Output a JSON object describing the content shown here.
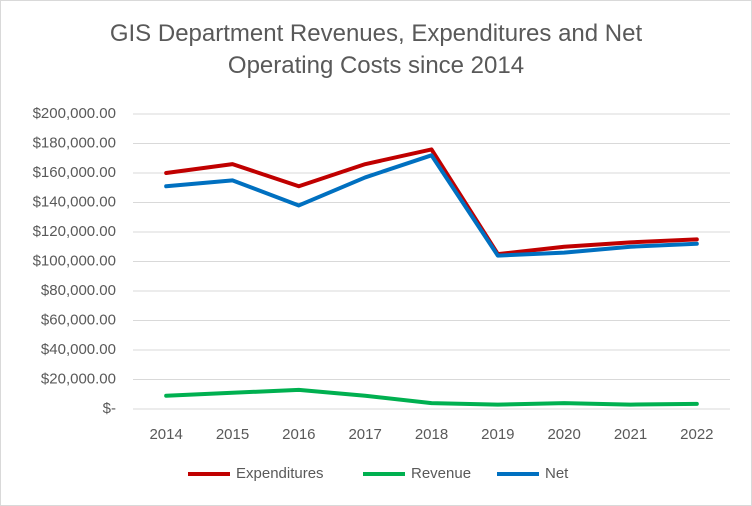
{
  "chart_data": {
    "type": "line",
    "title": "GIS Department Revenues, Expenditures and Net Operating Costs since 2014",
    "categories": [
      "2014",
      "2015",
      "2016",
      "2017",
      "2018",
      "2019",
      "2020",
      "2021",
      "2022"
    ],
    "series": [
      {
        "name": "Expenditures",
        "color": "#c00000",
        "values": [
          160000,
          166000,
          151000,
          166000,
          176000,
          105000,
          110000,
          113000,
          115000
        ]
      },
      {
        "name": "Revenue",
        "color": "#00b050",
        "values": [
          9000,
          11000,
          13000,
          9000,
          4000,
          3000,
          4000,
          3000,
          3500
        ]
      },
      {
        "name": "Net",
        "color": "#0070c0",
        "values": [
          151000,
          155000,
          138000,
          157000,
          172000,
          104000,
          106000,
          110000,
          112000
        ]
      }
    ],
    "ylim": [
      0,
      200000
    ],
    "yticks": [
      {
        "value": 0,
        "label": "$-"
      },
      {
        "value": 20000,
        "label": "$20,000.00"
      },
      {
        "value": 40000,
        "label": "$40,000.00"
      },
      {
        "value": 60000,
        "label": "$60,000.00"
      },
      {
        "value": 80000,
        "label": "$80,000.00"
      },
      {
        "value": 100000,
        "label": "$100,000.00"
      },
      {
        "value": 120000,
        "label": "$120,000.00"
      },
      {
        "value": 140000,
        "label": "$140,000.00"
      },
      {
        "value": 160000,
        "label": "$160,000.00"
      },
      {
        "value": 180000,
        "label": "$180,000.00"
      },
      {
        "value": 200000,
        "label": "$200,000.00"
      }
    ],
    "grid": true,
    "legend": "bottom"
  }
}
